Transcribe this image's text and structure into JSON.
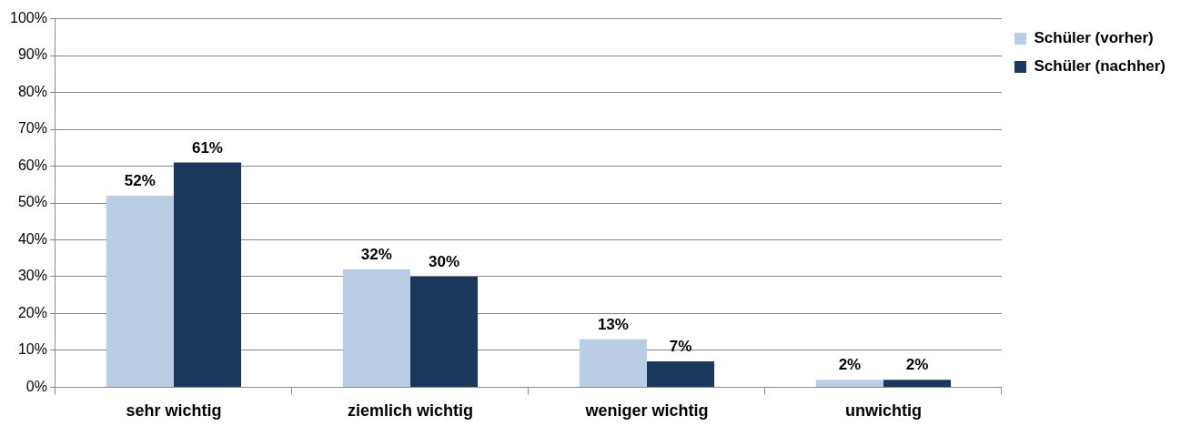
{
  "chart_data": {
    "type": "bar",
    "categories": [
      "sehr wichtig",
      "ziemlich wichtig",
      "weniger wichtig",
      "unwichtig"
    ],
    "series": [
      {
        "name": "Schüler (vorher)",
        "color": "#b9cde5",
        "values": [
          52,
          32,
          13,
          2
        ],
        "value_labels": [
          "52%",
          "32%",
          "13%",
          "2%"
        ]
      },
      {
        "name": "Schüler (nachher)",
        "color": "#1b375c",
        "values": [
          61,
          30,
          7,
          2
        ],
        "value_labels": [
          "61%",
          "30%",
          "7%",
          "2%"
        ]
      }
    ],
    "ylim": [
      0,
      100
    ],
    "yticks": [
      {
        "value": 0,
        "label": "0%"
      },
      {
        "value": 10,
        "label": "10%"
      },
      {
        "value": 20,
        "label": "20%"
      },
      {
        "value": 30,
        "label": "30%"
      },
      {
        "value": 40,
        "label": "40%"
      },
      {
        "value": 50,
        "label": "50%"
      },
      {
        "value": 60,
        "label": "60%"
      },
      {
        "value": 70,
        "label": "70%"
      },
      {
        "value": 80,
        "label": "80%"
      },
      {
        "value": 90,
        "label": "90%"
      },
      {
        "value": 100,
        "label": "100%"
      }
    ],
    "grid": "y",
    "legend": "top right"
  }
}
